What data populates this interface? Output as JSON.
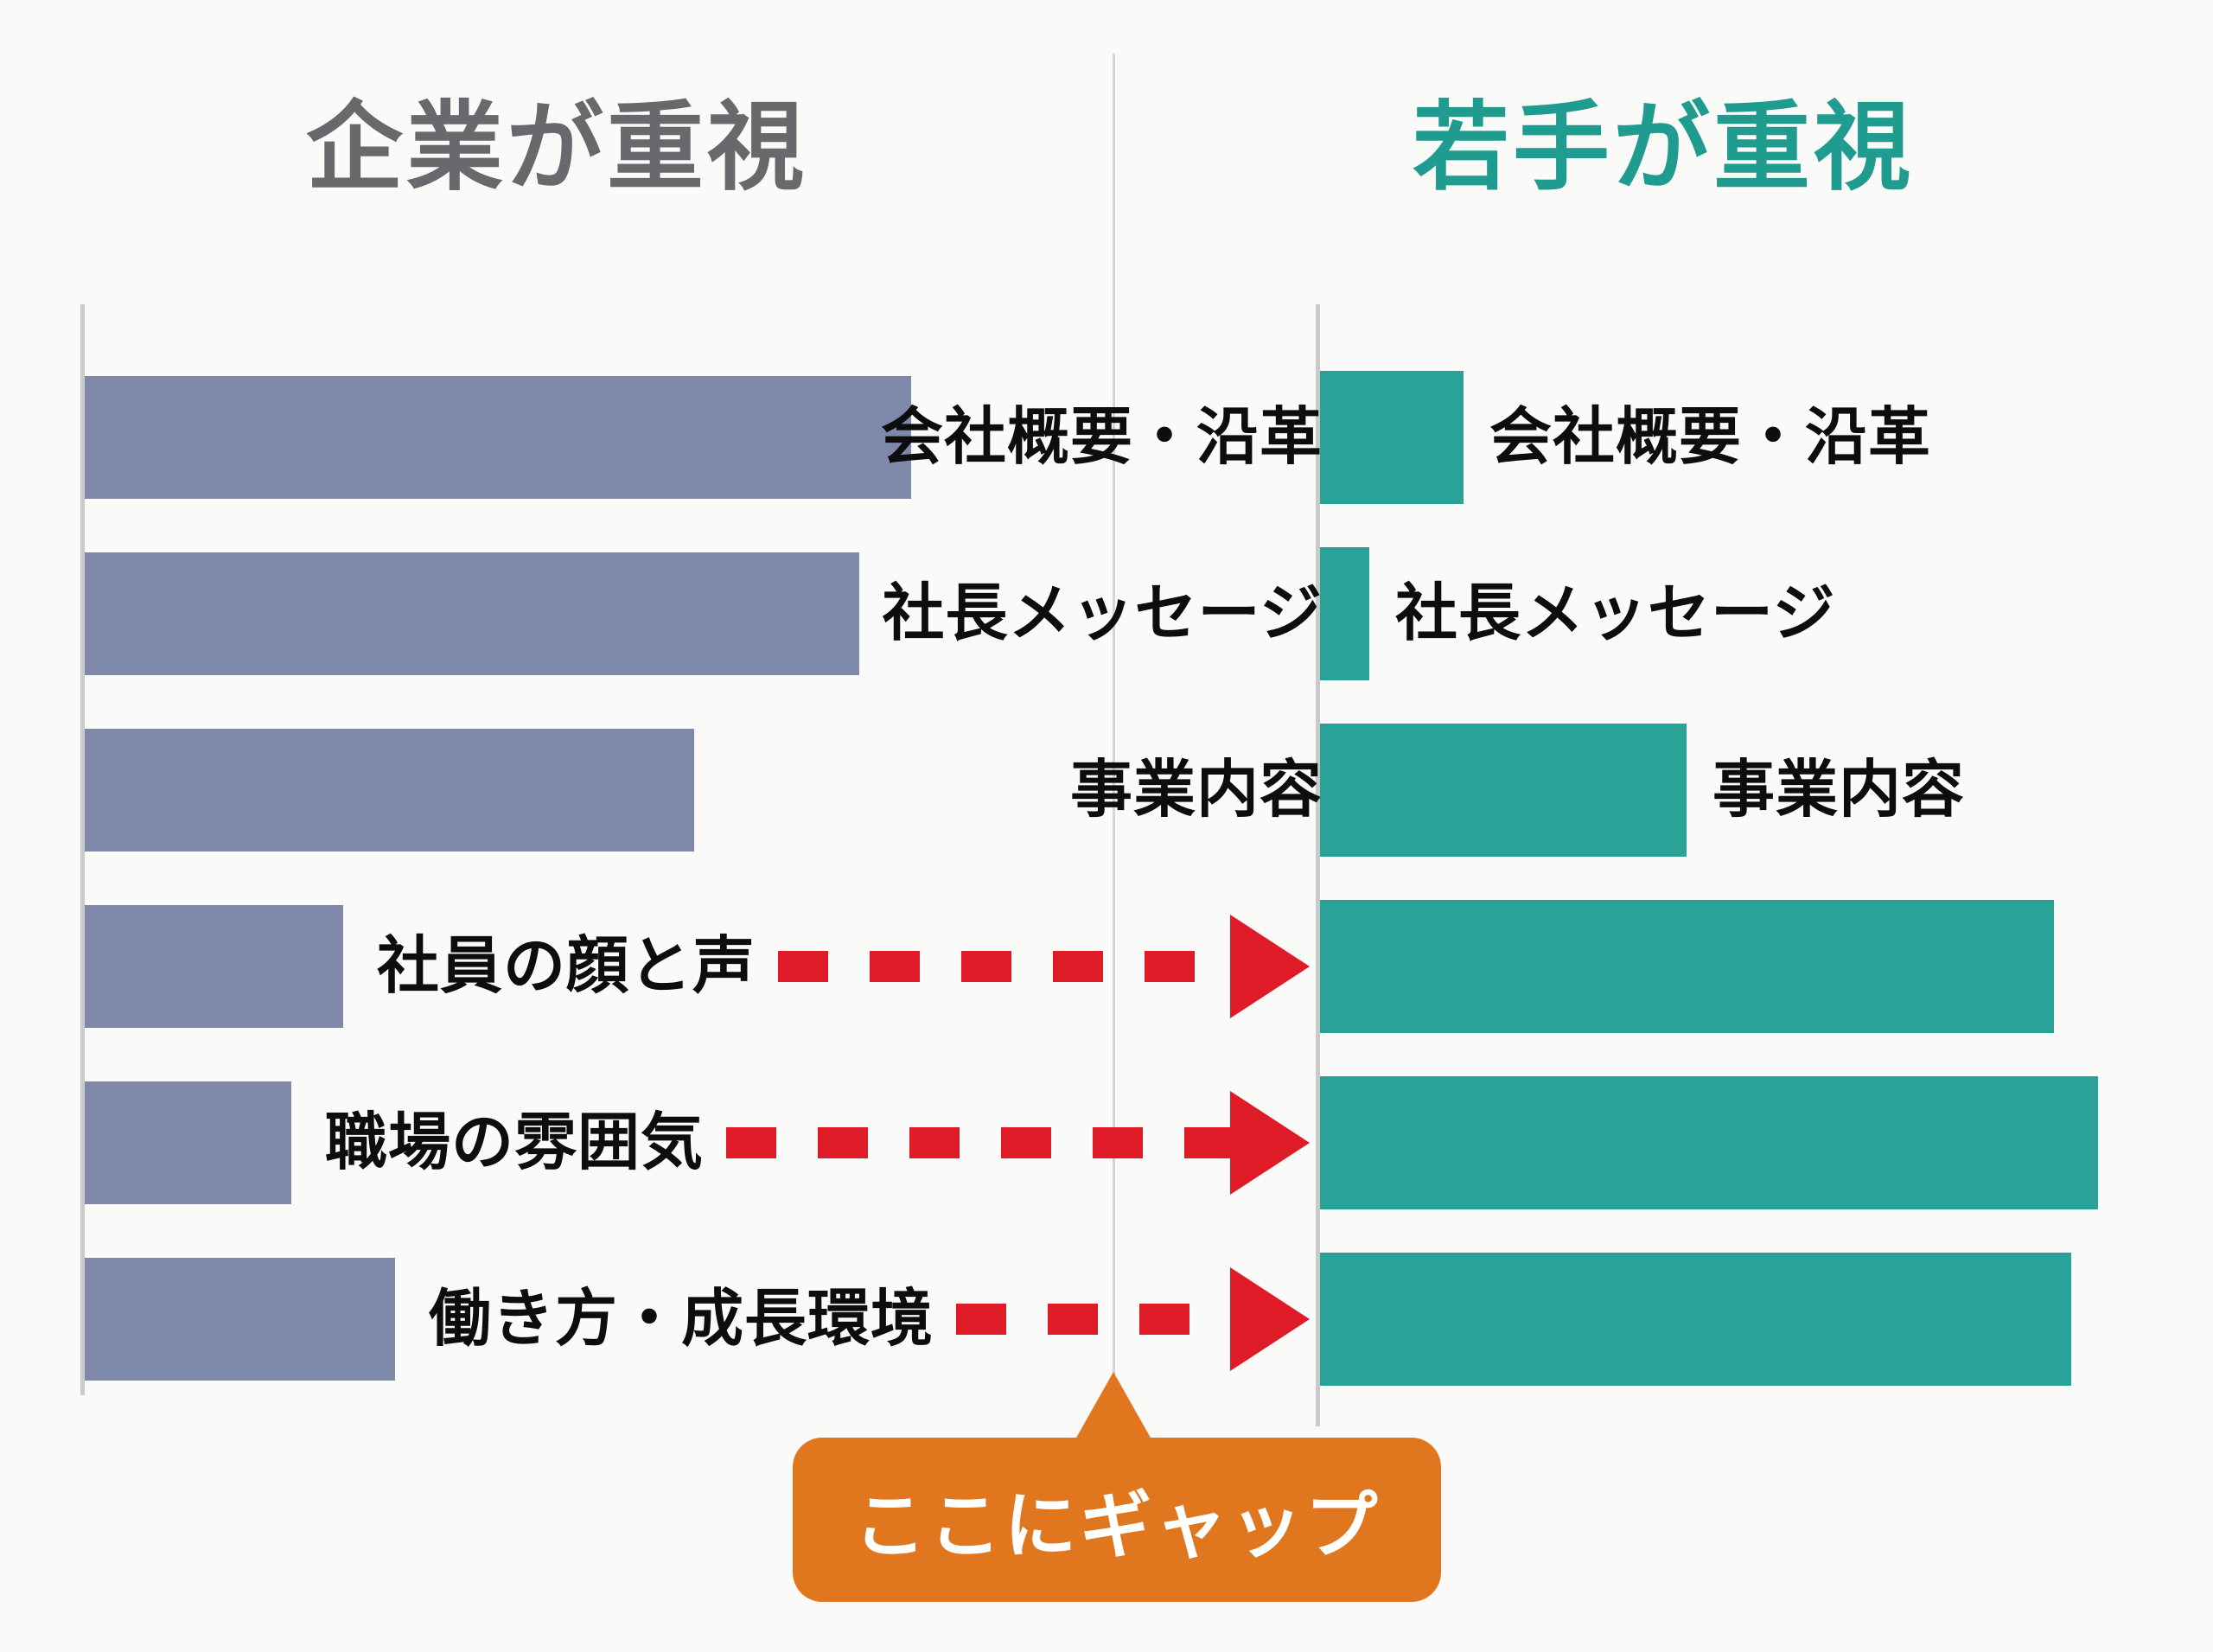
{
  "page": {
    "background": "#fafaf9"
  },
  "colors": {
    "company_bar": "#7e89aa",
    "youth_bar": "#29a397",
    "arrow_red": "#e01b28",
    "callout_orange": "#e0771f",
    "callout_text": "#ffffff",
    "axis_gray": "#c9cacc",
    "divider_gray": "#d5d5d7",
    "label_black": "#0d0d0d",
    "title_left_color": "#69696d",
    "title_right_color": "#1f9c8f"
  },
  "titles": {
    "left": "企業が重視",
    "right": "若手が重視"
  },
  "rows": [
    {
      "label": "会社概要・沿革",
      "label_right": "会社概要・沿革",
      "company": 80,
      "youth": 16,
      "gap_arrow": false
    },
    {
      "label": "社長メッセージ",
      "label_right": "社長メッセージ",
      "company": 75,
      "youth": 5.5,
      "gap_arrow": false
    },
    {
      "label": "事業内容",
      "label_right": "事業内容",
      "company": 59,
      "youth": 41,
      "gap_arrow": false
    },
    {
      "label": "社員の顔と声",
      "company": 25,
      "youth": 82,
      "gap_arrow": true
    },
    {
      "label": "職場の雰囲気",
      "company": 20,
      "youth": 87,
      "gap_arrow": true
    },
    {
      "label": "働き方・成長環境",
      "company": 30,
      "youth": 84,
      "gap_arrow": true
    }
  ],
  "callout": {
    "text": "ここにギャップ"
  },
  "chart_data": {
    "type": "bar",
    "orientation": "horizontal",
    "title_left": "企業が重視",
    "title_right": "若手が重視",
    "categories": [
      "会社概要・沿革",
      "社長メッセージ",
      "事業内容",
      "社員の顔と声",
      "職場の雰囲気",
      "働き方・成長環境"
    ],
    "series": [
      {
        "name": "企業が重視",
        "color": "#7e89aab",
        "values": [
          80,
          75,
          59,
          25,
          20,
          30
        ]
      },
      {
        "name": "若手が重視",
        "color": "#29a397",
        "values": [
          16,
          5.5,
          41,
          82,
          87,
          84
        ]
      }
    ],
    "value_scale": "relative bar length 0-100, no numeric axis shown",
    "grid": false,
    "legend_position": "none",
    "annotations": {
      "gap_arrow_rows": [
        "社員の顔と声",
        "職場の雰囲気",
        "働き方・成長環境"
      ],
      "callout": "ここにギャップ"
    }
  }
}
